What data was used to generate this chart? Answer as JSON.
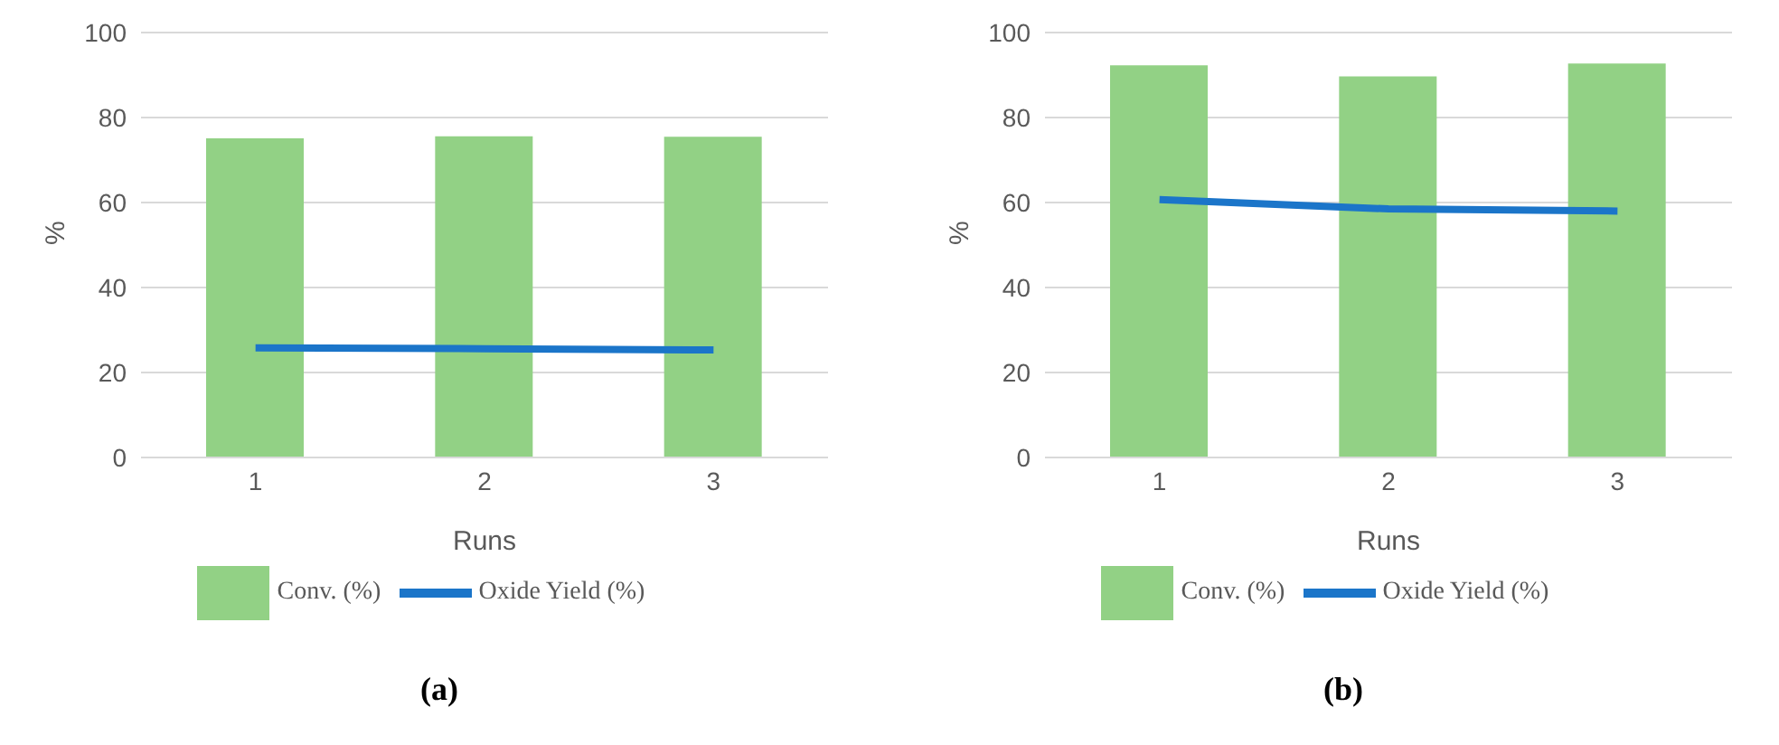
{
  "chart_data": [
    {
      "type": "bar",
      "categories": [
        "1",
        "2",
        "3"
      ],
      "xlabel": "Runs",
      "ylabel": "%",
      "ylim": [
        0,
        100
      ],
      "yticks": [
        0,
        20,
        40,
        60,
        80,
        100
      ],
      "grid": "y",
      "legend": "bottom",
      "annotations": [
        "(a)"
      ],
      "series": [
        {
          "name": "Conv. (%)",
          "color": "#92d185",
          "values": [
            75.1,
            75.6,
            75.5
          ]
        },
        {
          "name": "Oxide Yield (%)",
          "type": "line",
          "color": "#1b75c9",
          "values": [
            25.8,
            25.6,
            25.3
          ]
        }
      ]
    },
    {
      "type": "bar",
      "categories": [
        "1",
        "2",
        "3"
      ],
      "xlabel": "Runs",
      "ylabel": "%",
      "ylim": [
        0,
        100
      ],
      "yticks": [
        0,
        20,
        40,
        60,
        80,
        100
      ],
      "grid": "y",
      "legend": "bottom",
      "annotations": [
        "(b)"
      ],
      "series": [
        {
          "name": "Conv. (%)",
          "color": "#92d185",
          "values": [
            92.3,
            89.7,
            92.7
          ]
        },
        {
          "name": "Oxide Yield (%)",
          "type": "line",
          "color": "#1b75c9",
          "values": [
            60.7,
            58.5,
            58.0
          ]
        }
      ]
    }
  ]
}
